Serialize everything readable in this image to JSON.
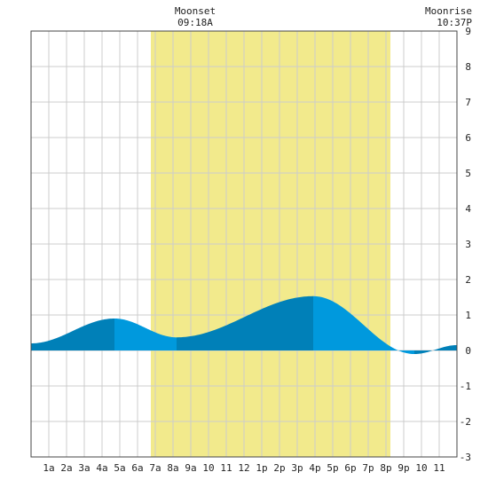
{
  "chart_data": {
    "type": "area",
    "title": "",
    "xlabel": "",
    "ylabel": "",
    "xlim": [
      0,
      24
    ],
    "ylim": [
      -3,
      9
    ],
    "grid": true,
    "x_ticks": [
      {
        "x": 1,
        "label": "1a"
      },
      {
        "x": 2,
        "label": "2a"
      },
      {
        "x": 3,
        "label": "3a"
      },
      {
        "x": 4,
        "label": "4a"
      },
      {
        "x": 5,
        "label": "5a"
      },
      {
        "x": 6,
        "label": "6a"
      },
      {
        "x": 7,
        "label": "7a"
      },
      {
        "x": 8,
        "label": "8a"
      },
      {
        "x": 9,
        "label": "9a"
      },
      {
        "x": 10,
        "label": "10"
      },
      {
        "x": 11,
        "label": "11"
      },
      {
        "x": 12,
        "label": "12"
      },
      {
        "x": 13,
        "label": "1p"
      },
      {
        "x": 14,
        "label": "2p"
      },
      {
        "x": 15,
        "label": "3p"
      },
      {
        "x": 16,
        "label": "4p"
      },
      {
        "x": 17,
        "label": "5p"
      },
      {
        "x": 18,
        "label": "6p"
      },
      {
        "x": 19,
        "label": "7p"
      },
      {
        "x": 20,
        "label": "8p"
      },
      {
        "x": 21,
        "label": "9p"
      },
      {
        "x": 22,
        "label": "10"
      },
      {
        "x": 23,
        "label": "11"
      }
    ],
    "y_ticks": [
      {
        "y": -3,
        "label": "-3"
      },
      {
        "y": -2,
        "label": "-2"
      },
      {
        "y": -1,
        "label": "-1"
      },
      {
        "y": 0,
        "label": "0"
      },
      {
        "y": 1,
        "label": "1"
      },
      {
        "y": 2,
        "label": "2"
      },
      {
        "y": 3,
        "label": "3"
      },
      {
        "y": 4,
        "label": "4"
      },
      {
        "y": 5,
        "label": "5"
      },
      {
        "y": 6,
        "label": "6"
      },
      {
        "y": 7,
        "label": "7"
      },
      {
        "y": 8,
        "label": "8"
      },
      {
        "y": 9,
        "label": "9"
      }
    ],
    "daylight": {
      "start": 6.75,
      "end": 20.25,
      "color": "#f2ea8c"
    },
    "tide_extrema": [
      {
        "x": 0,
        "y": 0.2
      },
      {
        "x": 4.7,
        "y": 0.9
      },
      {
        "x": 8.2,
        "y": 0.37
      },
      {
        "x": 15.9,
        "y": 1.53
      },
      {
        "x": 21.6,
        "y": -0.1
      },
      {
        "x": 24,
        "y": 0.15
      }
    ],
    "segment_breaks": [
      4.7,
      8.2,
      15.9,
      21.6
    ],
    "colors": {
      "rising": "#0080b8",
      "falling": "#0099dd",
      "grid": "#cccccc",
      "frame": "#444444"
    },
    "annotations": [
      {
        "x": 9.25,
        "title": "Moonset",
        "time": "09:18A"
      },
      {
        "x": 23.6,
        "title": "Moonrise",
        "time": "10:37P"
      }
    ]
  }
}
